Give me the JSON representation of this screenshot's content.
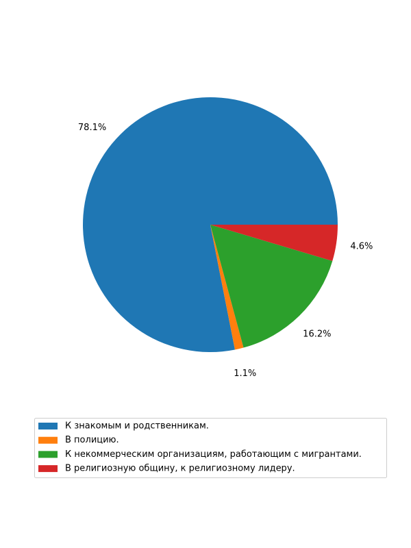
{
  "chart_data": {
    "type": "pie",
    "categories": [
      "К знакомым и родственникам.",
      "В полицию.",
      "К некоммерческим организациям, работающим с мигрантами.",
      "В религиозную общину, к религиозному лидеру."
    ],
    "values": [
      78.1,
      1.1,
      16.2,
      4.6
    ],
    "value_labels": [
      "78.1%",
      "1.1%",
      "16.2%",
      "4.6%"
    ],
    "colors": [
      "#1f77b4",
      "#ff7f0e",
      "#2ca02c",
      "#d62728"
    ],
    "start_angle_deg": 0,
    "direction": "counterclockwise",
    "legend_position": "bottom-center",
    "title": ""
  }
}
